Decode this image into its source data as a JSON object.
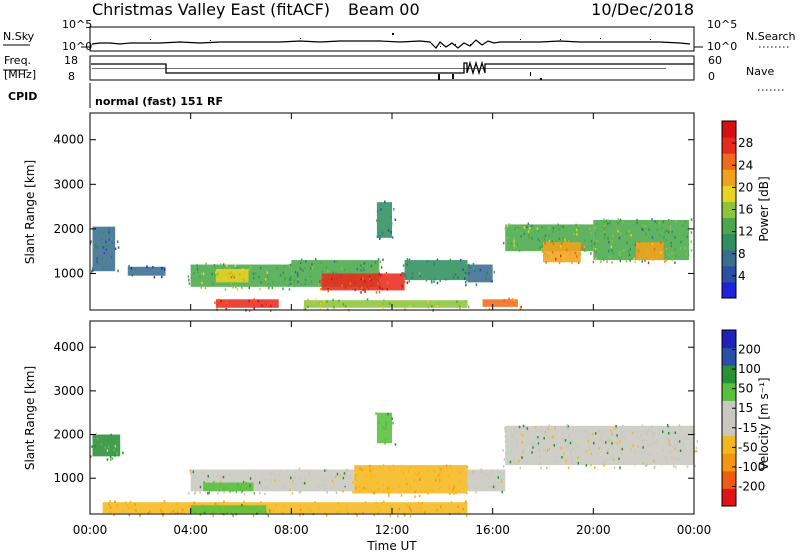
{
  "header": {
    "title": "Christmas Valley East (fitACF)",
    "beam": "Beam 00",
    "date": "10/Dec/2018"
  },
  "status_panel": {
    "nsky_label": "N.Sky",
    "nsky_ticks": [
      "10^5",
      "10^0"
    ],
    "nsearch_label": "N.Search",
    "nsearch_ticks": [
      "10^5",
      "10^0"
    ],
    "freq_label_1": "Freq.",
    "freq_label_2": "[MHz]",
    "freq_ticks": [
      "18",
      "8"
    ],
    "nave_label": "Nave",
    "nave_ticks": [
      "60",
      "0"
    ],
    "cpid_label": "CPID",
    "cpid_value": "normal (fast) 151 RF"
  },
  "colorbars": {
    "power": {
      "label": "Power [dB]",
      "ticks": [
        "28",
        "24",
        "20",
        "16",
        "12",
        "8",
        "4"
      ],
      "colors": [
        "#1e22d8",
        "#2a4fa6",
        "#3a6e8e",
        "#2f8f5e",
        "#4aa84a",
        "#8ec43a",
        "#e8d41e",
        "#f2a21a",
        "#f06a1c",
        "#e82a1c",
        "#d61010"
      ]
    },
    "velocity": {
      "label": "Velocity [m s⁻¹]",
      "ticks": [
        "200",
        "100",
        "50",
        "15",
        "-15",
        "-50",
        "-100",
        "-200"
      ],
      "colors": [
        "#e01414",
        "#f05a10",
        "#f5960e",
        "#f5b81c",
        "#c8c8c0",
        "#c8c8c0",
        "#58c03a",
        "#2a8f36",
        "#2a4fa6",
        "#1e22b8"
      ]
    }
  },
  "chart_data": [
    {
      "type": "heatmap",
      "name": "Power",
      "title": "Christmas Valley East (fitACF)",
      "xlabel": "",
      "ylabel": "Slant Range [km]",
      "x_ticks": [
        "00:00",
        "04:00",
        "08:00",
        "12:00",
        "16:00",
        "20:00",
        "00:00"
      ],
      "y_ticks": [
        "1000",
        "2000",
        "3000",
        "4000"
      ],
      "xlim_hours": [
        0,
        24
      ],
      "ylim_km": [
        180,
        4600
      ],
      "colorbar": "Power [dB]",
      "regions": [
        {
          "t0": 0.1,
          "t1": 1.0,
          "r0": 1050,
          "r1": 2050,
          "value": 8
        },
        {
          "t0": 1.5,
          "t1": 3.0,
          "r0": 950,
          "r1": 1150,
          "value": 6
        },
        {
          "t0": 4.0,
          "t1": 8.0,
          "r0": 700,
          "r1": 1200,
          "value": 14
        },
        {
          "t0": 5.0,
          "t1": 6.3,
          "r0": 800,
          "r1": 1100,
          "value": 20
        },
        {
          "t0": 8.0,
          "t1": 11.5,
          "r0": 700,
          "r1": 1300,
          "value": 12
        },
        {
          "t0": 9.2,
          "t1": 12.5,
          "r0": 620,
          "r1": 1000,
          "value": 28
        },
        {
          "t0": 12.5,
          "t1": 15.0,
          "r0": 850,
          "r1": 1300,
          "value": 10
        },
        {
          "t0": 11.4,
          "t1": 12.0,
          "r0": 1800,
          "r1": 2600,
          "value": 9
        },
        {
          "t0": 5.0,
          "t1": 7.5,
          "r0": 230,
          "r1": 420,
          "value": 28
        },
        {
          "t0": 8.5,
          "t1": 15.0,
          "r0": 230,
          "r1": 400,
          "value": 16
        },
        {
          "t0": 15.6,
          "t1": 17.0,
          "r0": 250,
          "r1": 420,
          "value": 26
        },
        {
          "t0": 15.0,
          "t1": 16.0,
          "r0": 800,
          "r1": 1200,
          "value": 8
        },
        {
          "t0": 16.5,
          "t1": 20.0,
          "r0": 1500,
          "r1": 2100,
          "value": 14
        },
        {
          "t0": 18.0,
          "t1": 19.5,
          "r0": 1250,
          "r1": 1700,
          "value": 22
        },
        {
          "t0": 20.0,
          "t1": 23.8,
          "r0": 1300,
          "r1": 2200,
          "value": 13
        },
        {
          "t0": 21.7,
          "t1": 22.8,
          "r0": 1300,
          "r1": 1700,
          "value": 22
        }
      ]
    },
    {
      "type": "heatmap",
      "name": "Velocity",
      "xlabel": "Time UT",
      "ylabel": "Slant Range [km]",
      "x_ticks": [
        "00:00",
        "04:00",
        "08:00",
        "12:00",
        "16:00",
        "20:00",
        "00:00"
      ],
      "y_ticks": [
        "1000",
        "2000",
        "3000",
        "4000"
      ],
      "xlim_hours": [
        0,
        24
      ],
      "ylim_km": [
        180,
        4600
      ],
      "colorbar": "Velocity [m s⁻¹]",
      "regions": [
        {
          "t0": 0.1,
          "t1": 1.2,
          "r0": 1500,
          "r1": 2000,
          "value": 30
        },
        {
          "t0": 4.0,
          "t1": 8.0,
          "r0": 700,
          "r1": 1200,
          "value": 0
        },
        {
          "t0": 4.5,
          "t1": 6.5,
          "r0": 700,
          "r1": 900,
          "value": 40
        },
        {
          "t0": 8.0,
          "t1": 10.5,
          "r0": 700,
          "r1": 1200,
          "value": 0
        },
        {
          "t0": 10.5,
          "t1": 15.0,
          "r0": 650,
          "r1": 1300,
          "value": -40
        },
        {
          "t0": 11.4,
          "t1": 12.0,
          "r0": 1800,
          "r1": 2500,
          "value": 40
        },
        {
          "t0": 0.5,
          "t1": 15.0,
          "r0": 200,
          "r1": 450,
          "value": -40
        },
        {
          "t0": 4.0,
          "t1": 7.0,
          "r0": 200,
          "r1": 380,
          "value": 40
        },
        {
          "t0": 15.0,
          "t1": 16.5,
          "r0": 700,
          "r1": 1200,
          "value": 0
        },
        {
          "t0": 16.5,
          "t1": 24.0,
          "r0": 1300,
          "r1": 2200,
          "value": 0
        }
      ]
    }
  ]
}
